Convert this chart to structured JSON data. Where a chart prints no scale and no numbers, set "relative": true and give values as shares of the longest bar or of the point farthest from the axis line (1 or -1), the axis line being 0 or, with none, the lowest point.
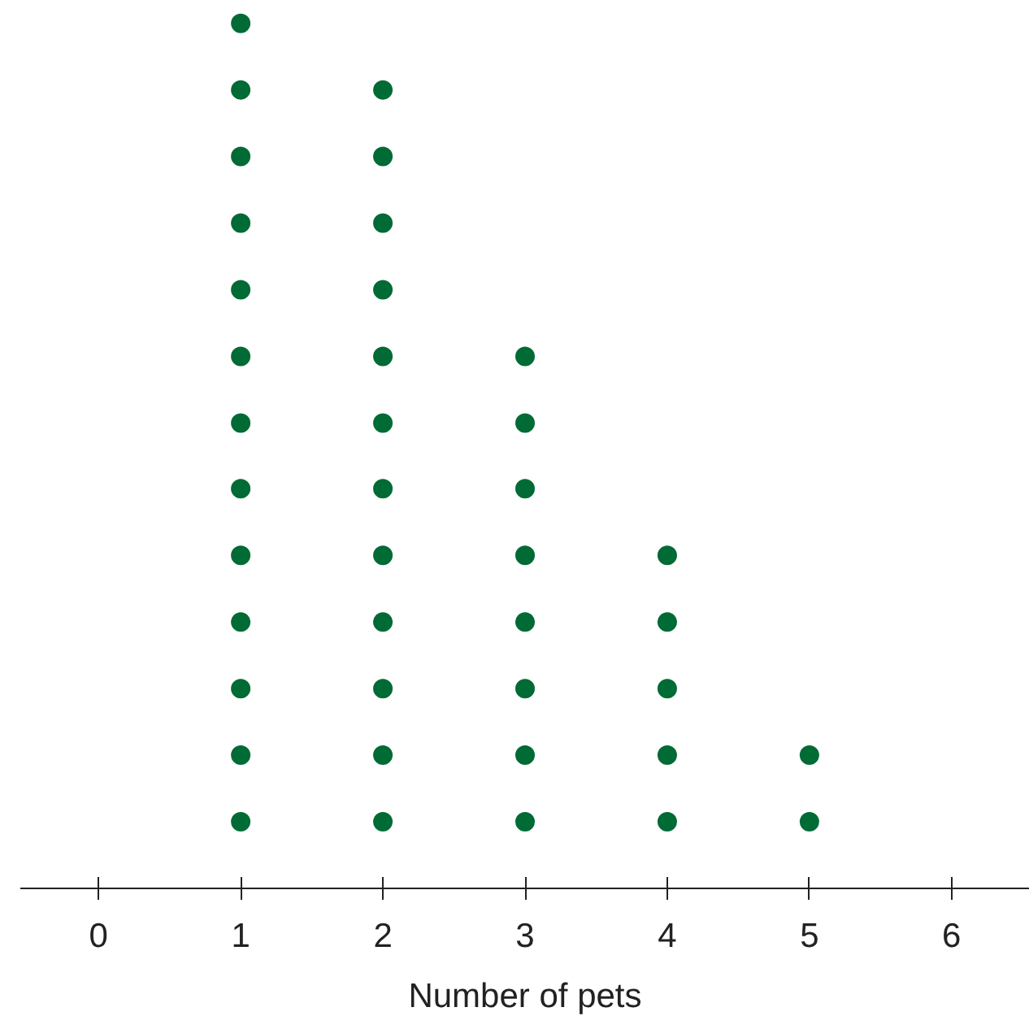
{
  "chart_data": {
    "type": "scatter",
    "xlabel": "Number of pets",
    "relative": true,
    "series": [
      {
        "color": "#006b35",
        "x": [
          1,
          1,
          1,
          1,
          1,
          1,
          1,
          1,
          1,
          1,
          1,
          1,
          1
        ],
        "values": [
          0.077,
          0.154,
          0.231,
          0.308,
          0.385,
          0.462,
          0.538,
          0.615,
          0.692,
          0.769,
          0.846,
          0.923,
          1
        ]
      },
      {
        "color": "#006b35",
        "x": [
          2,
          2,
          2,
          2,
          2,
          2,
          2,
          2,
          2,
          2,
          2,
          2
        ],
        "values": [
          0.077,
          0.154,
          0.231,
          0.308,
          0.385,
          0.462,
          0.538,
          0.615,
          0.692,
          0.769,
          0.846,
          0.923
        ]
      },
      {
        "color": "#006b35",
        "x": [
          3,
          3,
          3,
          3,
          3,
          3,
          3,
          3
        ],
        "values": [
          0.077,
          0.154,
          0.231,
          0.308,
          0.385,
          0.462,
          0.538,
          0.615
        ]
      },
      {
        "color": "#006b35",
        "x": [
          4,
          4,
          4,
          4,
          4
        ],
        "values": [
          0.077,
          0.154,
          0.231,
          0.308,
          0.385
        ]
      },
      {
        "color": "#006b35",
        "x": [
          5,
          5
        ],
        "values": [
          0.077,
          0.154
        ]
      }
    ],
    "xlim": [
      -0.55,
      6.55
    ],
    "xticks": [
      0,
      1,
      2,
      3,
      4,
      5,
      6
    ],
    "tick_labels": "x",
    "grid": false,
    "marker": "circle"
  }
}
